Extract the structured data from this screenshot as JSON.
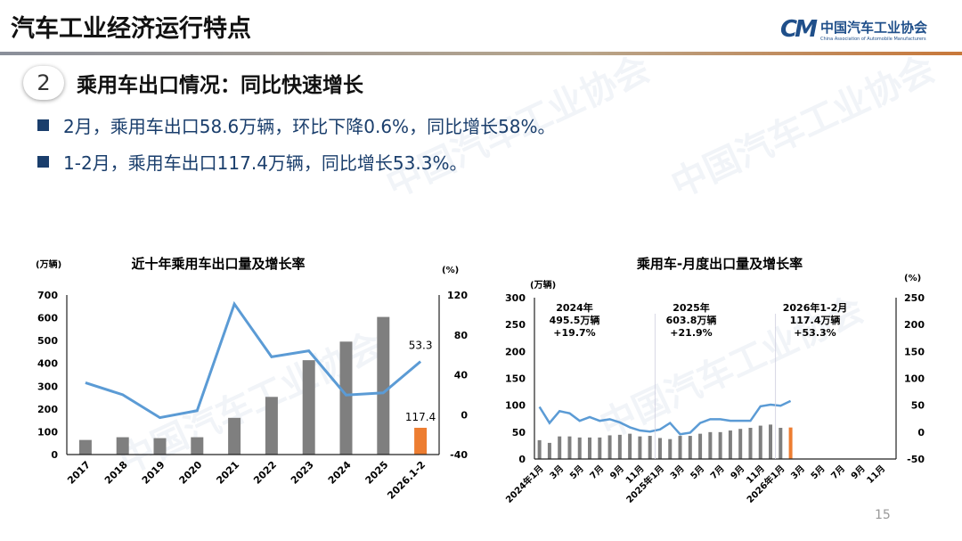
{
  "header": {
    "title": "汽车工业经济运行特点",
    "logo_cn": "中国汽车工业协会",
    "logo_en": "China Association of Automobile Manufacturers",
    "logo_mark": "CM"
  },
  "section": {
    "number": "2",
    "title": "乘用车出口情况：同比快速增长"
  },
  "bullets": [
    "2月，乘用车出口58.6万辆，环比下降0.6%，同比增长58%。",
    "1-2月，乘用车出口117.4万辆，同比增长53.3%。"
  ],
  "page_number": "15",
  "chart_data": [
    {
      "type": "bar+line",
      "title": "近十年乘用车出口量及增长率",
      "ylabel_left": "(万辆)",
      "ylabel_right": "(%)",
      "ylim_left": [
        0,
        700
      ],
      "ylim_right": [
        -40,
        120
      ],
      "yticks_left": [
        0,
        100,
        200,
        300,
        400,
        500,
        600,
        700
      ],
      "yticks_right": [
        -40,
        0,
        40,
        80,
        120
      ],
      "categories": [
        "2017",
        "2018",
        "2019",
        "2020",
        "2021",
        "2022",
        "2023",
        "2024",
        "2025",
        "2026.1-2"
      ],
      "bars": [
        64,
        76,
        72,
        76,
        161,
        253,
        414,
        495.5,
        603.8,
        117.4
      ],
      "line": [
        32,
        20,
        -3,
        4,
        111,
        58,
        64,
        19.7,
        21.9,
        53.3
      ],
      "bar_color": "#7f7f7f",
      "highlight_color": "#ed7d31",
      "line_color": "#5b9bd5",
      "data_labels": {
        "bar_last": "117.4",
        "line_last": "53.3"
      },
      "grid": false
    },
    {
      "type": "bar+line",
      "title": "乘用车-月度出口量及增长率",
      "ylabel_left": "(万辆)",
      "ylabel_right": "(%)",
      "ylim_left": [
        0,
        300
      ],
      "ylim_right": [
        -50,
        250
      ],
      "yticks_left": [
        0,
        50,
        100,
        150,
        200,
        250,
        300
      ],
      "yticks_right": [
        -50,
        0,
        50,
        100,
        150,
        200,
        250
      ],
      "tick_labels": [
        "2024年1月",
        "3月",
        "5月",
        "7月",
        "9月",
        "11月",
        "2025年1月",
        "3月",
        "5月",
        "7月",
        "9月",
        "11月",
        "2026年1月",
        "3月",
        "5月",
        "7月",
        "9月",
        "11月"
      ],
      "bars": [
        35,
        30,
        42,
        42,
        40,
        40,
        40,
        44,
        45,
        47,
        42,
        43,
        39,
        37,
        43,
        43,
        47,
        50,
        50,
        53,
        56,
        58,
        62,
        64,
        58,
        58.6
      ],
      "line": [
        47,
        17,
        39,
        35,
        21,
        28,
        21,
        24,
        18,
        9,
        3,
        1,
        5,
        17,
        -4,
        -1,
        17,
        24,
        24,
        21,
        21,
        21,
        48,
        51,
        49,
        58
      ],
      "annotations": [
        [
          "2024年",
          "495.5万辆",
          "+19.7%"
        ],
        [
          "2025年",
          "603.8万辆",
          "+21.9%"
        ],
        [
          "2026年1-2月",
          "117.4万辆",
          "+53.3%"
        ]
      ],
      "bar_color": "#7f7f7f",
      "highlight_color": "#ed7d31",
      "line_color": "#5b9bd5",
      "grid": false
    }
  ]
}
